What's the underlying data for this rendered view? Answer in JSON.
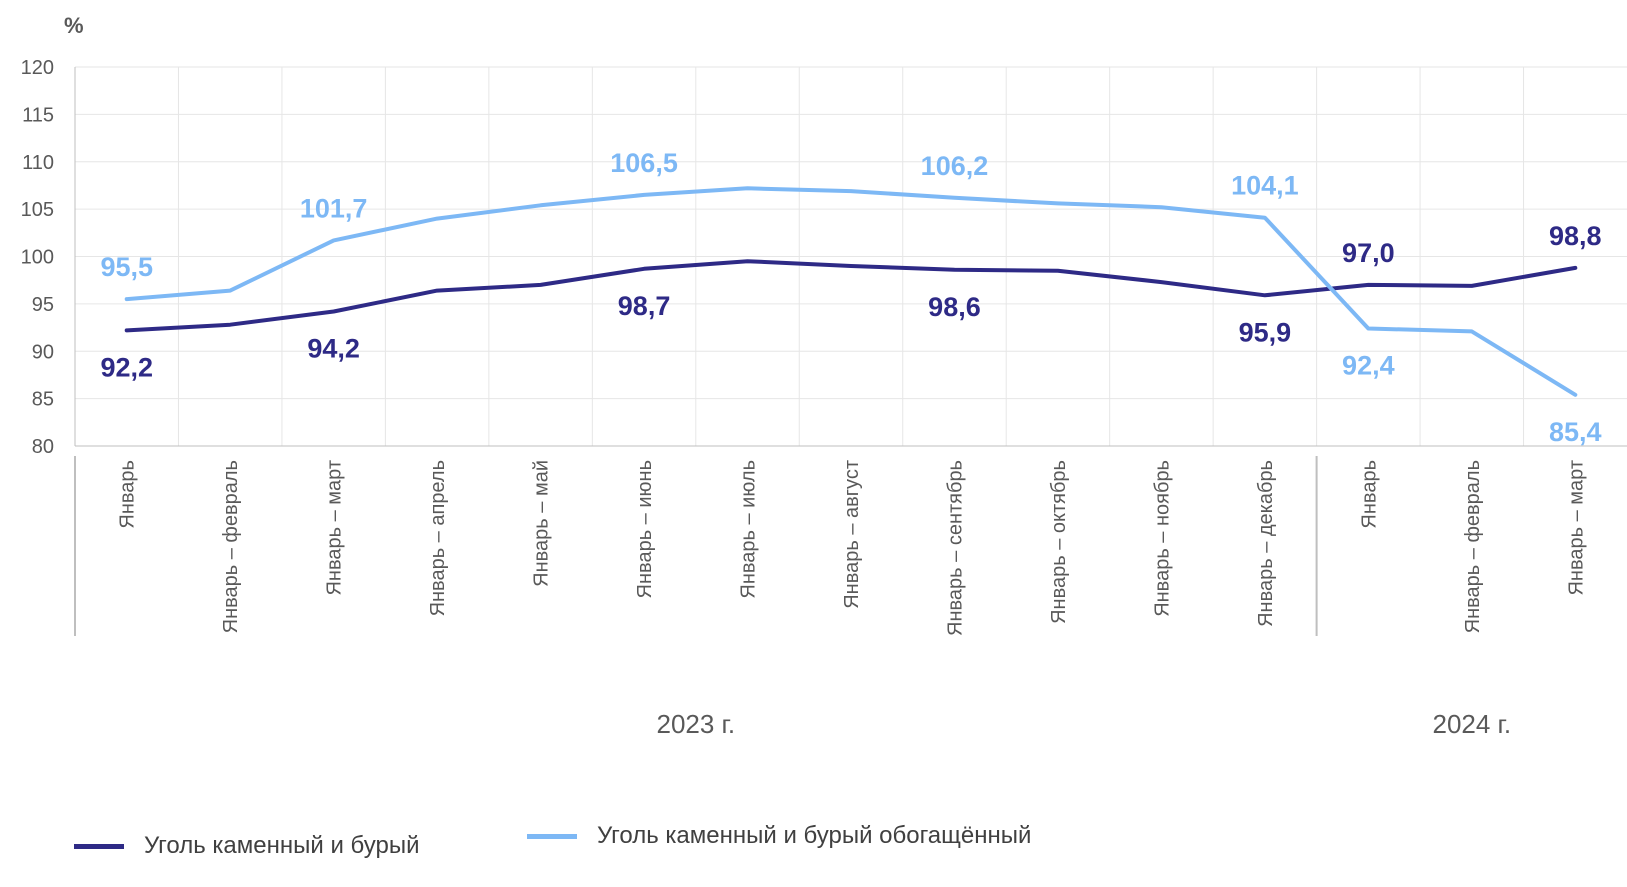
{
  "chart_data": {
    "type": "line",
    "ylabel": "%",
    "ylim": [
      80,
      120
    ],
    "yticks": [
      80,
      85,
      90,
      95,
      100,
      105,
      110,
      115,
      120
    ],
    "categories": [
      "Январь",
      "Январь – февраль",
      "Январь – март",
      "Январь – апрель",
      "Январь – май",
      "Январь – июнь",
      "Январь – июль",
      "Январь – август",
      "Январь – сентябрь",
      "Январь – октябрь",
      "Январь – ноябрь",
      "Январь – декабрь",
      "Январь",
      "Январь – февраль",
      "Январь – март"
    ],
    "groups": [
      {
        "label": "2023 г.",
        "start": 0,
        "end": 11
      },
      {
        "label": "2024 г.",
        "start": 12,
        "end": 14
      }
    ],
    "series": [
      {
        "name": "Уголь каменный и бурый",
        "color": "#2e2a86",
        "values": [
          92.2,
          92.8,
          94.2,
          96.4,
          97.0,
          98.7,
          99.5,
          99.0,
          98.6,
          98.5,
          97.3,
          95.9,
          97.0,
          96.9,
          98.8
        ],
        "labels": [
          {
            "index": 0,
            "text": "92,2",
            "pos": "below"
          },
          {
            "index": 2,
            "text": "94,2",
            "pos": "below"
          },
          {
            "index": 5,
            "text": "98,7",
            "pos": "below"
          },
          {
            "index": 8,
            "text": "98,6",
            "pos": "below"
          },
          {
            "index": 11,
            "text": "95,9",
            "pos": "below"
          },
          {
            "index": 12,
            "text": "97,0",
            "pos": "above"
          },
          {
            "index": 14,
            "text": "98,8",
            "pos": "above"
          }
        ]
      },
      {
        "name": "Уголь каменный и бурый обогащённый",
        "color": "#7db8f5",
        "values": [
          95.5,
          96.4,
          101.7,
          104.0,
          105.4,
          106.5,
          107.2,
          106.9,
          106.2,
          105.6,
          105.2,
          104.1,
          92.4,
          92.1,
          85.4
        ],
        "labels": [
          {
            "index": 0,
            "text": "95,5",
            "pos": "above"
          },
          {
            "index": 2,
            "text": "101,7",
            "pos": "above"
          },
          {
            "index": 5,
            "text": "106,5",
            "pos": "above"
          },
          {
            "index": 8,
            "text": "106,2",
            "pos": "above"
          },
          {
            "index": 11,
            "text": "104,1",
            "pos": "above"
          },
          {
            "index": 12,
            "text": "92,4",
            "pos": "below"
          },
          {
            "index": 14,
            "text": "85,4",
            "pos": "below"
          }
        ]
      }
    ]
  }
}
